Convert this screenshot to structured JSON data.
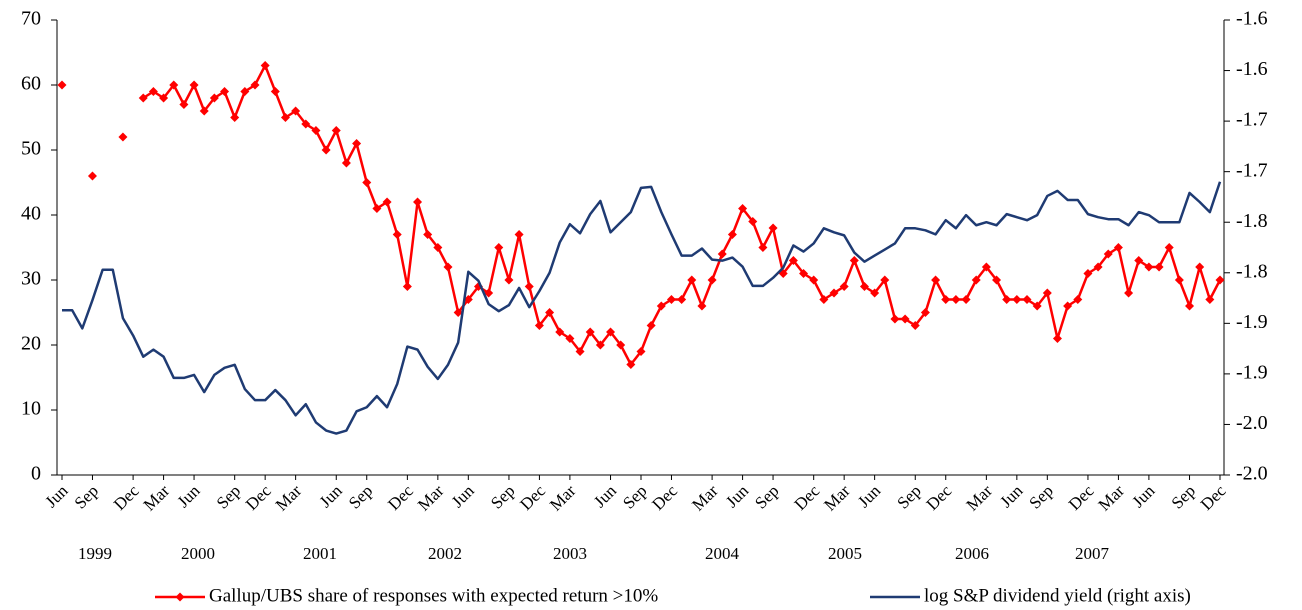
{
  "chart_data": {
    "type": "line",
    "categories": [
      "Jun",
      null,
      null,
      "Sep",
      null,
      null,
      null,
      "Dec",
      null,
      null,
      "Mar",
      null,
      null,
      "Jun",
      null,
      null,
      null,
      "Sep",
      null,
      null,
      "Dec",
      null,
      null,
      "Mar",
      null,
      null,
      null,
      "Jun",
      null,
      null,
      "Sep",
      null,
      null,
      null,
      "Dec",
      null,
      null,
      "Mar",
      null,
      null,
      "Jun",
      null,
      null,
      null,
      "Sep",
      null,
      null,
      "Dec",
      null,
      null,
      "Mar",
      null,
      null,
      null,
      "Jun",
      null,
      null,
      "Sep",
      null,
      null,
      "Dec",
      null,
      null,
      null,
      "Mar",
      null,
      null,
      "Jun",
      null,
      null,
      "Sep",
      null,
      null,
      null,
      "Dec",
      null,
      null,
      "Mar",
      null,
      null,
      "Jun",
      null,
      null,
      null,
      "Sep",
      null,
      null,
      "Dec",
      null,
      null,
      null,
      "Mar",
      null,
      null,
      "Jun",
      null,
      null,
      "Sep",
      null,
      null,
      null,
      "Dec",
      null,
      null,
      "Mar",
      null,
      null,
      "Jun",
      null,
      null,
      null,
      "Sep",
      null,
      null,
      "Dec"
    ],
    "year_labels": [
      "1999",
      "2000",
      "2001",
      "2002",
      "2003",
      "2004",
      "2005",
      "2006",
      "2007"
    ],
    "series": [
      {
        "name": "Gallup/UBS share of responses with expected return >10%",
        "color": "#ff0000",
        "marker": "diamond",
        "values": [
          60,
          null,
          null,
          46,
          null,
          null,
          52,
          null,
          58,
          59,
          58,
          60,
          57,
          60,
          56,
          58,
          59,
          55,
          59,
          60,
          63,
          59,
          55,
          56,
          54,
          53,
          50,
          53,
          48,
          51,
          45,
          41,
          42,
          37,
          29,
          42,
          37,
          35,
          32,
          25,
          27,
          29,
          28,
          35,
          30,
          37,
          29,
          23,
          25,
          22,
          21,
          19,
          22,
          20,
          22,
          20,
          17,
          19,
          23,
          26,
          27,
          27,
          30,
          26,
          30,
          34,
          37,
          41,
          39,
          35,
          38,
          31,
          33,
          31,
          30,
          27,
          28,
          29,
          33,
          29,
          28,
          30,
          24,
          24,
          23,
          25,
          30,
          27,
          27,
          27,
          30,
          32,
          30,
          27,
          27,
          27,
          26,
          28,
          21,
          26,
          27,
          31,
          32,
          34,
          35,
          28,
          33,
          32,
          32,
          35,
          30,
          26,
          32,
          27,
          30
        ]
      },
      {
        "name": "log S&P dividend yield (right axis)",
        "color": "#1f3b73",
        "axis": "y2",
        "values": [
          -1.837,
          -1.837,
          -1.855,
          -1.827,
          -1.797,
          -1.797,
          -1.845,
          -1.862,
          -1.883,
          -1.876,
          -1.883,
          -1.904,
          -1.904,
          -1.901,
          -1.918,
          -1.901,
          -1.894,
          -1.891,
          -1.915,
          -1.926,
          -1.926,
          -1.916,
          -1.926,
          -1.941,
          -1.93,
          -1.948,
          -1.956,
          -1.959,
          -1.956,
          -1.937,
          -1.933,
          -1.922,
          -1.933,
          -1.91,
          -1.873,
          -1.876,
          -1.893,
          -1.905,
          -1.891,
          -1.869,
          -1.799,
          -1.808,
          -1.831,
          -1.838,
          -1.832,
          -1.815,
          -1.834,
          -1.818,
          -1.8,
          -1.77,
          -1.752,
          -1.761,
          -1.742,
          -1.729,
          -1.76,
          -1.75,
          -1.74,
          -1.716,
          -1.715,
          -1.74,
          -1.762,
          -1.783,
          -1.783,
          -1.776,
          -1.787,
          -1.788,
          -1.785,
          -1.794,
          -1.813,
          -1.813,
          -1.805,
          -1.795,
          -1.773,
          -1.779,
          -1.771,
          -1.756,
          -1.76,
          -1.763,
          -1.78,
          -1.789,
          -1.783,
          -1.777,
          -1.771,
          -1.756,
          -1.756,
          -1.758,
          -1.762,
          -1.748,
          -1.756,
          -1.743,
          -1.753,
          -1.75,
          -1.753,
          -1.742,
          -1.745,
          -1.748,
          -1.743,
          -1.724,
          -1.719,
          -1.728,
          -1.728,
          -1.742,
          -1.745,
          -1.747,
          -1.747,
          -1.753,
          -1.74,
          -1.743,
          -1.75,
          -1.75,
          -1.75,
          -1.721,
          -1.73,
          -1.74,
          -1.71
        ]
      }
    ],
    "ylim": [
      0,
      70
    ],
    "yticks": [
      0,
      10,
      20,
      30,
      40,
      50,
      60,
      70
    ],
    "y2lim": [
      -2.0,
      -1.55
    ],
    "y2ticks": [
      {
        "value": -2.0,
        "label": "-2.0"
      },
      {
        "value": -1.95,
        "label": "-2.0"
      },
      {
        "value": -1.9,
        "label": "-1.9"
      },
      {
        "value": -1.85,
        "label": "-1.9"
      },
      {
        "value": -1.8,
        "label": "-1.8"
      },
      {
        "value": -1.75,
        "label": "-1.8"
      },
      {
        "value": -1.7,
        "label": "-1.7"
      },
      {
        "value": -1.65,
        "label": "-1.7"
      },
      {
        "value": -1.6,
        "label": "-1.6"
      },
      {
        "value": -1.55,
        "label": "-1.6"
      }
    ],
    "grid": false,
    "legend": "bottom"
  }
}
